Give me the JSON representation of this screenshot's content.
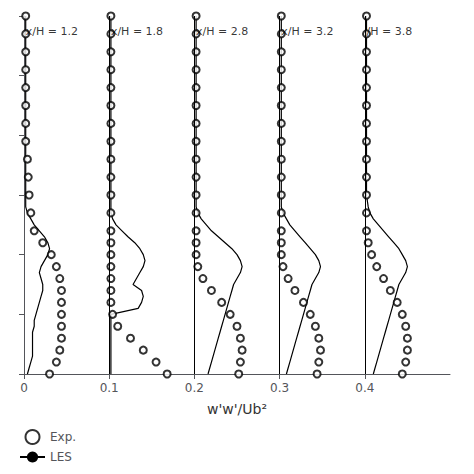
{
  "chart_data": {
    "type": "line",
    "xlabel": "w'w'/Ub²",
    "xlim": [
      0.0,
      0.5
    ],
    "xticks": [
      0,
      0.1,
      0.2,
      0.3,
      0.4
    ],
    "ylim": [
      0.0,
      3.0
    ],
    "yticks": [
      0.0,
      0.5,
      1.0,
      1.5,
      2.0,
      2.5,
      3.0
    ],
    "tick_labels": "x",
    "grid": false,
    "legend": "lower left",
    "vlines": [
      0.1,
      0.2,
      0.3,
      0.4
    ],
    "annotations": [
      {
        "x": 0.002,
        "y": 2.92,
        "text": "x/H = 1.2"
      },
      {
        "x": 0.102,
        "y": 2.92,
        "text": "x/H = 1.8"
      },
      {
        "x": 0.202,
        "y": 2.92,
        "text": "x/H = 2.8"
      },
      {
        "x": 0.302,
        "y": 2.92,
        "text": "x/H = 3.2"
      },
      {
        "x": 0.402,
        "y": 2.92,
        "text": "/H = 3.8"
      }
    ],
    "series": [
      {
        "name": "Exp.",
        "type": "scatter",
        "marker": "circle",
        "color": "#000000",
        "x": [
          0.002,
          0.002,
          0.002,
          0.002,
          0.002,
          0.002,
          0.002,
          0.002,
          0.004,
          0.005,
          0.006,
          0.008,
          0.012,
          0.022,
          0.032,
          0.038,
          0.042,
          0.044,
          0.044,
          0.044,
          0.044,
          0.044,
          0.042,
          0.038,
          0.03
        ],
        "values": [
          3.0,
          2.85,
          2.7,
          2.55,
          2.4,
          2.25,
          2.1,
          1.95,
          1.8,
          1.65,
          1.5,
          1.35,
          1.2,
          1.1,
          1.0,
          0.9,
          0.8,
          0.7,
          0.6,
          0.5,
          0.4,
          0.3,
          0.2,
          0.1,
          0.0
        ]
      },
      {
        "name": "LES",
        "type": "line",
        "line_style": "solid",
        "color": "#000000",
        "x": [
          0.002,
          0.002,
          0.002,
          0.002,
          0.002,
          0.002,
          0.002,
          0.002,
          0.002,
          0.002,
          0.002,
          0.002,
          0.002,
          0.002,
          0.002,
          0.002,
          0.002,
          0.004,
          0.008,
          0.012,
          0.018,
          0.024,
          0.028,
          0.03,
          0.028,
          0.024,
          0.02,
          0.018,
          0.02,
          0.022,
          0.022,
          0.02,
          0.018,
          0.016,
          0.014,
          0.012,
          0.012,
          0.01,
          0.01,
          0.01,
          0.01,
          0.01,
          0.008,
          0.006,
          0.004
        ],
        "values": [
          3.0,
          2.9,
          2.8,
          2.7,
          2.6,
          2.5,
          2.4,
          2.3,
          2.2,
          2.1,
          2.0,
          1.9,
          1.8,
          1.7,
          1.6,
          1.5,
          1.4,
          1.35,
          1.3,
          1.25,
          1.2,
          1.15,
          1.1,
          1.05,
          1.0,
          0.95,
          0.9,
          0.85,
          0.8,
          0.75,
          0.7,
          0.65,
          0.6,
          0.55,
          0.5,
          0.45,
          0.4,
          0.35,
          0.3,
          0.25,
          0.2,
          0.15,
          0.1,
          0.05,
          0.0
        ]
      },
      {
        "name": "Exp.",
        "type": "scatter",
        "marker": "circle",
        "color": "#000000",
        "x": [
          0.102,
          0.102,
          0.102,
          0.102,
          0.102,
          0.102,
          0.102,
          0.102,
          0.102,
          0.102,
          0.102,
          0.102,
          0.102,
          0.102,
          0.102,
          0.102,
          0.102,
          0.102,
          0.102,
          0.104,
          0.11,
          0.125,
          0.14,
          0.155,
          0.168
        ],
        "values": [
          3.0,
          2.85,
          2.7,
          2.55,
          2.4,
          2.25,
          2.1,
          1.95,
          1.8,
          1.65,
          1.5,
          1.35,
          1.2,
          1.1,
          1.0,
          0.9,
          0.8,
          0.7,
          0.6,
          0.5,
          0.4,
          0.3,
          0.2,
          0.1,
          0.0
        ]
      },
      {
        "name": "LES",
        "type": "line",
        "line_style": "solid",
        "color": "#000000",
        "x": [
          0.102,
          0.102,
          0.102,
          0.102,
          0.102,
          0.102,
          0.102,
          0.102,
          0.102,
          0.102,
          0.102,
          0.102,
          0.102,
          0.102,
          0.102,
          0.102,
          0.102,
          0.102,
          0.104,
          0.108,
          0.115,
          0.122,
          0.13,
          0.136,
          0.14,
          0.142,
          0.14,
          0.136,
          0.132,
          0.128,
          0.138,
          0.14,
          0.138,
          0.134,
          0.102,
          0.102,
          0.102,
          0.102,
          0.102,
          0.102,
          0.102,
          0.102,
          0.102,
          0.102,
          0.102
        ],
        "values": [
          3.0,
          2.9,
          2.8,
          2.7,
          2.6,
          2.5,
          2.4,
          2.3,
          2.2,
          2.1,
          2.0,
          1.9,
          1.8,
          1.7,
          1.6,
          1.5,
          1.4,
          1.35,
          1.3,
          1.25,
          1.2,
          1.15,
          1.1,
          1.05,
          1.0,
          0.95,
          0.9,
          0.85,
          0.8,
          0.75,
          0.7,
          0.65,
          0.6,
          0.55,
          0.5,
          0.45,
          0.4,
          0.35,
          0.3,
          0.25,
          0.2,
          0.15,
          0.1,
          0.05,
          0.0
        ]
      },
      {
        "name": "Exp.",
        "type": "scatter",
        "marker": "circle",
        "color": "#000000",
        "x": [
          0.202,
          0.202,
          0.202,
          0.202,
          0.202,
          0.202,
          0.202,
          0.202,
          0.202,
          0.202,
          0.202,
          0.202,
          0.202,
          0.202,
          0.202,
          0.204,
          0.21,
          0.22,
          0.232,
          0.242,
          0.25,
          0.254,
          0.256,
          0.254,
          0.252
        ],
        "values": [
          3.0,
          2.85,
          2.7,
          2.55,
          2.4,
          2.25,
          2.1,
          1.95,
          1.8,
          1.65,
          1.5,
          1.35,
          1.2,
          1.1,
          1.0,
          0.9,
          0.8,
          0.7,
          0.6,
          0.5,
          0.4,
          0.3,
          0.2,
          0.1,
          0.0
        ]
      },
      {
        "name": "LES",
        "type": "line",
        "line_style": "solid",
        "color": "#000000",
        "x": [
          0.202,
          0.202,
          0.202,
          0.202,
          0.202,
          0.202,
          0.202,
          0.202,
          0.202,
          0.202,
          0.202,
          0.202,
          0.202,
          0.202,
          0.202,
          0.202,
          0.202,
          0.204,
          0.208,
          0.214,
          0.22,
          0.228,
          0.236,
          0.244,
          0.25,
          0.254,
          0.256,
          0.254,
          0.25,
          0.246,
          0.244,
          0.242,
          0.24,
          0.238,
          0.236,
          0.234,
          0.232,
          0.23,
          0.228,
          0.226,
          0.224,
          0.222,
          0.22,
          0.218,
          0.216
        ],
        "values": [
          3.0,
          2.9,
          2.8,
          2.7,
          2.6,
          2.5,
          2.4,
          2.3,
          2.2,
          2.1,
          2.0,
          1.9,
          1.8,
          1.7,
          1.6,
          1.5,
          1.4,
          1.35,
          1.3,
          1.25,
          1.2,
          1.15,
          1.1,
          1.05,
          1.0,
          0.95,
          0.9,
          0.85,
          0.8,
          0.75,
          0.7,
          0.65,
          0.6,
          0.55,
          0.5,
          0.45,
          0.4,
          0.35,
          0.3,
          0.25,
          0.2,
          0.15,
          0.1,
          0.05,
          0.0
        ]
      },
      {
        "name": "Exp.",
        "type": "scatter",
        "marker": "circle",
        "color": "#000000",
        "x": [
          0.302,
          0.302,
          0.302,
          0.302,
          0.302,
          0.302,
          0.302,
          0.302,
          0.302,
          0.302,
          0.302,
          0.302,
          0.302,
          0.302,
          0.302,
          0.304,
          0.31,
          0.318,
          0.328,
          0.336,
          0.342,
          0.346,
          0.348,
          0.346,
          0.344
        ],
        "values": [
          3.0,
          2.85,
          2.7,
          2.55,
          2.4,
          2.25,
          2.1,
          1.95,
          1.8,
          1.65,
          1.5,
          1.35,
          1.2,
          1.1,
          1.0,
          0.9,
          0.8,
          0.7,
          0.6,
          0.5,
          0.4,
          0.3,
          0.2,
          0.1,
          0.0
        ]
      },
      {
        "name": "LES",
        "type": "line",
        "line_style": "solid",
        "color": "#000000",
        "x": [
          0.302,
          0.302,
          0.302,
          0.302,
          0.302,
          0.302,
          0.302,
          0.302,
          0.302,
          0.302,
          0.302,
          0.302,
          0.302,
          0.302,
          0.302,
          0.302,
          0.302,
          0.304,
          0.308,
          0.312,
          0.318,
          0.324,
          0.33,
          0.336,
          0.342,
          0.346,
          0.348,
          0.346,
          0.342,
          0.338,
          0.336,
          0.334,
          0.332,
          0.33,
          0.328,
          0.326,
          0.324,
          0.322,
          0.32,
          0.318,
          0.316,
          0.314,
          0.312,
          0.31,
          0.308
        ],
        "values": [
          3.0,
          2.9,
          2.8,
          2.7,
          2.6,
          2.5,
          2.4,
          2.3,
          2.2,
          2.1,
          2.0,
          1.9,
          1.8,
          1.7,
          1.6,
          1.5,
          1.4,
          1.35,
          1.3,
          1.25,
          1.2,
          1.15,
          1.1,
          1.05,
          1.0,
          0.95,
          0.9,
          0.85,
          0.8,
          0.75,
          0.7,
          0.65,
          0.6,
          0.55,
          0.5,
          0.45,
          0.4,
          0.35,
          0.3,
          0.25,
          0.2,
          0.15,
          0.1,
          0.05,
          0.0
        ]
      },
      {
        "name": "Exp.",
        "type": "scatter",
        "marker": "circle",
        "color": "#000000",
        "x": [
          0.402,
          0.402,
          0.402,
          0.402,
          0.402,
          0.402,
          0.402,
          0.402,
          0.402,
          0.402,
          0.402,
          0.402,
          0.402,
          0.404,
          0.408,
          0.414,
          0.422,
          0.43,
          0.438,
          0.444,
          0.448,
          0.45,
          0.45,
          0.448,
          0.444
        ],
        "values": [
          3.0,
          2.85,
          2.7,
          2.55,
          2.4,
          2.25,
          2.1,
          1.95,
          1.8,
          1.65,
          1.5,
          1.35,
          1.2,
          1.1,
          1.0,
          0.9,
          0.8,
          0.7,
          0.6,
          0.5,
          0.4,
          0.3,
          0.2,
          0.1,
          0.0
        ]
      },
      {
        "name": "LES",
        "type": "line",
        "line_style": "solid",
        "color": "#000000",
        "x": [
          0.402,
          0.402,
          0.402,
          0.402,
          0.402,
          0.402,
          0.402,
          0.402,
          0.402,
          0.402,
          0.402,
          0.402,
          0.402,
          0.402,
          0.402,
          0.402,
          0.404,
          0.406,
          0.41,
          0.416,
          0.422,
          0.428,
          0.434,
          0.44,
          0.444,
          0.448,
          0.45,
          0.448,
          0.444,
          0.44,
          0.438,
          0.436,
          0.434,
          0.432,
          0.43,
          0.428,
          0.426,
          0.424,
          0.422,
          0.42,
          0.418,
          0.416,
          0.414,
          0.412,
          0.41
        ],
        "values": [
          3.0,
          2.9,
          2.8,
          2.7,
          2.6,
          2.5,
          2.4,
          2.3,
          2.2,
          2.1,
          2.0,
          1.9,
          1.8,
          1.7,
          1.6,
          1.5,
          1.4,
          1.35,
          1.3,
          1.25,
          1.2,
          1.15,
          1.1,
          1.05,
          1.0,
          0.95,
          0.9,
          0.85,
          0.8,
          0.75,
          0.7,
          0.65,
          0.6,
          0.55,
          0.5,
          0.45,
          0.4,
          0.35,
          0.3,
          0.25,
          0.2,
          0.15,
          0.1,
          0.05,
          0.0
        ]
      }
    ]
  }
}
